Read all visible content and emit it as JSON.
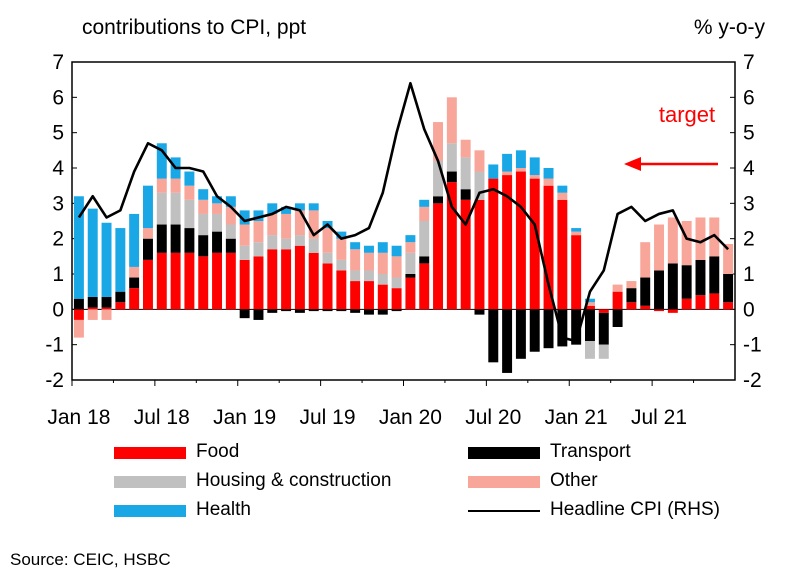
{
  "chart_data": {
    "type": "bar",
    "stacked": true,
    "title_left": "contributions to CPI, ppt",
    "title_right": "% y-o-y",
    "ylim": [
      -2,
      7
    ],
    "y_ticks": [
      "-2",
      "-1",
      "0",
      "1",
      "2",
      "3",
      "4",
      "5",
      "6",
      "7"
    ],
    "x_tick_labels": [
      {
        "index": 0,
        "label": "Jan 18"
      },
      {
        "index": 6,
        "label": "Jul 18"
      },
      {
        "index": 12,
        "label": "Jan 19"
      },
      {
        "index": 18,
        "label": "Jul 19"
      },
      {
        "index": 24,
        "label": "Jan 20"
      },
      {
        "index": 30,
        "label": "Jul 20"
      },
      {
        "index": 36,
        "label": "Jan 21"
      },
      {
        "index": 42,
        "label": "Jul 21"
      }
    ],
    "categories": [
      "2018-01",
      "2018-02",
      "2018-03",
      "2018-04",
      "2018-05",
      "2018-06",
      "2018-07",
      "2018-08",
      "2018-09",
      "2018-10",
      "2018-11",
      "2018-12",
      "2019-01",
      "2019-02",
      "2019-03",
      "2019-04",
      "2019-05",
      "2019-06",
      "2019-07",
      "2019-08",
      "2019-09",
      "2019-10",
      "2019-11",
      "2019-12",
      "2020-01",
      "2020-02",
      "2020-03",
      "2020-04",
      "2020-05",
      "2020-06",
      "2020-07",
      "2020-08",
      "2020-09",
      "2020-10",
      "2020-11",
      "2020-12",
      "2021-01",
      "2021-02",
      "2021-03",
      "2021-04",
      "2021-05",
      "2021-06",
      "2021-07",
      "2021-08",
      "2021-09",
      "2021-10",
      "2021-11",
      "2021-12"
    ],
    "series": [
      {
        "name": "Food",
        "color": "#ff0000",
        "values": [
          -0.3,
          0.05,
          0.05,
          0.2,
          0.6,
          1.4,
          1.6,
          1.6,
          1.6,
          1.5,
          1.6,
          1.6,
          1.4,
          1.5,
          1.7,
          1.7,
          1.8,
          1.6,
          1.3,
          1.1,
          0.8,
          0.8,
          0.7,
          0.6,
          0.9,
          1.3,
          3.0,
          3.6,
          3.1,
          3.1,
          3.7,
          3.8,
          3.9,
          3.7,
          3.5,
          3.1,
          2.1,
          0.1,
          -0.1,
          0.5,
          0.2,
          0.1,
          -0.05,
          -0.1,
          0.3,
          0.4,
          0.45,
          0.2
        ]
      },
      {
        "name": "Transport",
        "color": "#000000",
        "values": [
          0.3,
          0.3,
          0.3,
          0.3,
          0.3,
          0.6,
          0.8,
          0.8,
          0.7,
          0.6,
          0.6,
          0.4,
          -0.25,
          -0.3,
          -0.1,
          -0.05,
          -0.1,
          -0.05,
          -0.05,
          -0.05,
          -0.1,
          -0.15,
          -0.15,
          -0.05,
          0.1,
          0.2,
          0.2,
          0.3,
          0.3,
          -0.15,
          -1.5,
          -1.8,
          -1.4,
          -1.2,
          -1.1,
          -1.05,
          -1.0,
          -0.9,
          -0.9,
          -0.5,
          0.4,
          0.8,
          1.1,
          1.3,
          0.95,
          1.0,
          1.05,
          0.8
        ]
      },
      {
        "name": "Housing & construction",
        "color": "#c0c0c0",
        "values": [
          0.0,
          0.0,
          0.0,
          0.0,
          0.0,
          0.0,
          0.9,
          0.9,
          0.8,
          0.6,
          0.5,
          0.4,
          0.4,
          0.4,
          0.4,
          0.3,
          0.3,
          0.4,
          0.3,
          0.3,
          0.3,
          0.3,
          0.3,
          0.3,
          0.6,
          1.0,
          1.0,
          0.8,
          0.9,
          0.8,
          0.0,
          0.0,
          0.0,
          0.0,
          0.0,
          0.0,
          0.0,
          -0.5,
          -0.4,
          0.0,
          0.0,
          0.0,
          0.0,
          0.0,
          0.0,
          0.0,
          0.0,
          0.0
        ]
      },
      {
        "name": "Other",
        "color": "#f8a59a",
        "values": [
          -0.5,
          -0.3,
          -0.3,
          0.0,
          0.3,
          0.3,
          0.4,
          0.4,
          0.4,
          0.4,
          0.3,
          0.5,
          0.6,
          0.6,
          0.6,
          0.7,
          0.7,
          0.8,
          0.7,
          0.6,
          0.6,
          0.5,
          0.6,
          0.6,
          0.3,
          0.4,
          1.1,
          1.3,
          0.5,
          0.6,
          0.0,
          0.1,
          0.1,
          0.1,
          0.2,
          0.2,
          0.1,
          0.1,
          0.0,
          0.2,
          0.2,
          1.0,
          1.3,
          1.3,
          1.25,
          1.2,
          1.1,
          0.85
        ]
      },
      {
        "name": "Health",
        "color": "#1aa7e6",
        "values": [
          2.9,
          2.5,
          2.1,
          1.8,
          1.5,
          1.2,
          1.0,
          0.6,
          0.4,
          0.3,
          0.2,
          0.3,
          0.4,
          0.3,
          0.3,
          0.2,
          0.2,
          0.2,
          0.2,
          0.2,
          0.2,
          0.2,
          0.3,
          0.3,
          0.2,
          0.2,
          0.0,
          0.0,
          0.0,
          0.0,
          0.4,
          0.5,
          0.5,
          0.5,
          0.3,
          0.2,
          0.1,
          0.1,
          0.0,
          0.0,
          0.0,
          0.0,
          0.0,
          0.0,
          0.0,
          0.0,
          0.0,
          0.0
        ]
      },
      {
        "name": "Headline CPI (RHS)",
        "color": "#000000",
        "type": "line",
        "values": [
          2.6,
          3.2,
          2.6,
          2.8,
          3.9,
          4.7,
          4.5,
          4.0,
          4.0,
          3.9,
          3.2,
          2.9,
          2.5,
          2.6,
          2.7,
          2.9,
          2.8,
          2.1,
          2.4,
          2.0,
          2.1,
          2.3,
          3.3,
          5.0,
          6.4,
          5.1,
          4.2,
          2.9,
          2.4,
          3.3,
          3.4,
          3.2,
          2.9,
          2.4,
          0.7,
          -0.8,
          -0.9,
          0.5,
          1.1,
          2.7,
          2.9,
          2.5,
          2.7,
          2.8,
          2.0,
          1.9,
          2.1,
          1.7
        ]
      }
    ],
    "annotation": {
      "text": "target",
      "value": 4.0,
      "color": "#ff0000"
    }
  },
  "legend": [
    {
      "name": "Food",
      "kind": "box",
      "color": "#ff0000"
    },
    {
      "name": "Transport",
      "kind": "box",
      "color": "#000000"
    },
    {
      "name": "Housing & construction",
      "kind": "box",
      "color": "#c0c0c0"
    },
    {
      "name": "Other",
      "kind": "box",
      "color": "#f8a59a"
    },
    {
      "name": "Health",
      "kind": "box",
      "color": "#1aa7e6"
    },
    {
      "name": "Headline CPI (RHS)",
      "kind": "line",
      "color": "#000000"
    }
  ],
  "source": "Source: CEIC, HSBC"
}
